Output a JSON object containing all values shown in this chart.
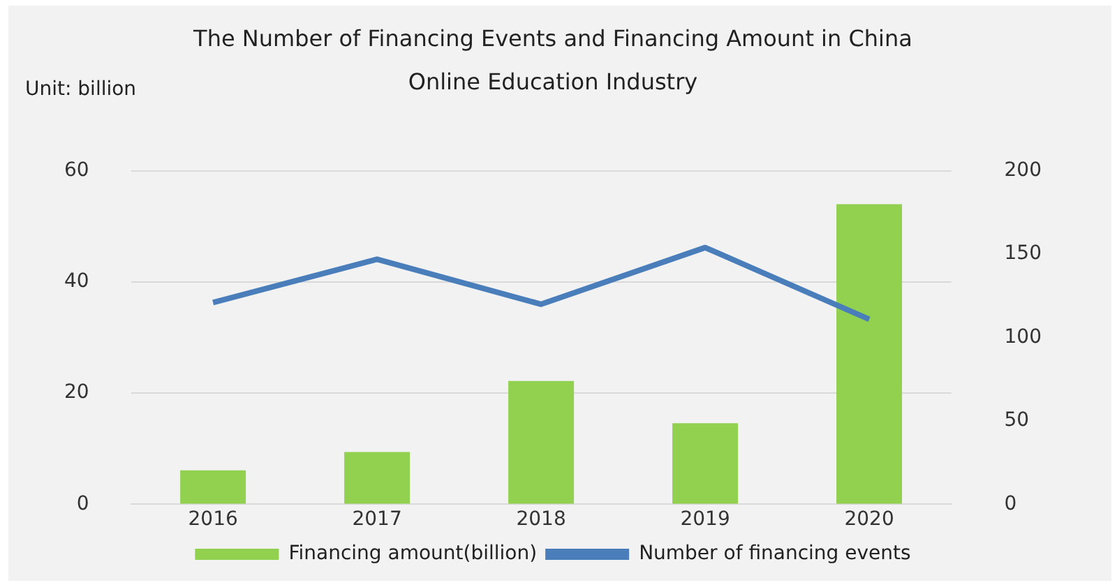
{
  "chart_data": {
    "type": "bar",
    "title": "The Number of Financing Events and Financing Amount in  China Online Education Industry",
    "annotations": [
      "Unit:  billion"
    ],
    "categories": [
      "2016",
      "2017",
      "2018",
      "2019",
      "2020"
    ],
    "series": [
      {
        "name": "Financing amount(billion)",
        "color": "#92d050",
        "values": [
          6.1,
          9.4,
          22.2,
          14.6,
          54.0
        ]
      },
      {
        "name": "Number of financing events",
        "type": "line",
        "axis": "y2",
        "color": "#4a7ebb",
        "values": [
          121,
          147,
          120,
          154,
          111
        ]
      }
    ],
    "ylim": [
      0,
      60
    ],
    "yticks": [
      0,
      20,
      40,
      60
    ],
    "y2lim": [
      0,
      200
    ],
    "y2ticks": [
      0,
      50,
      100,
      150,
      200
    ],
    "grid": "y",
    "legend": "bottom",
    "marker": "none"
  }
}
